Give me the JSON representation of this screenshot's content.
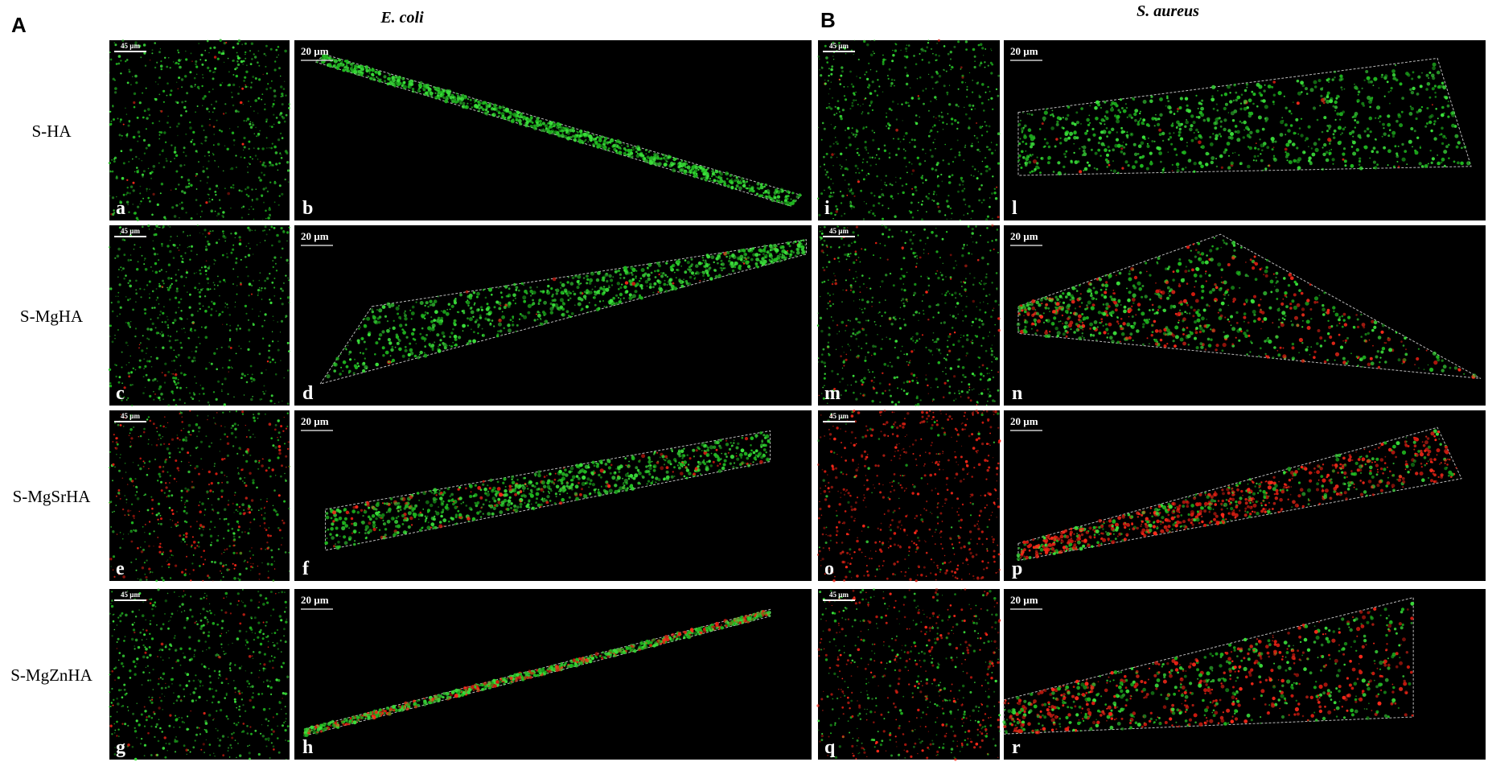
{
  "row_labels": [
    "S-HA",
    "S-MgHA",
    "S-MgSrHA",
    "S-MgZnHA"
  ],
  "panels": [
    {
      "label": "A",
      "title": "E. coli",
      "rows": [
        {
          "image": {
            "letter": "a",
            "scale_bar": "45 µm"
          },
          "view3d": {
            "letter": "b",
            "scale_bar": "20 µm"
          }
        },
        {
          "image": {
            "letter": "c",
            "scale_bar": "45 µm"
          },
          "view3d": {
            "letter": "d",
            "scale_bar": "20 µm"
          }
        },
        {
          "image": {
            "letter": "e",
            "scale_bar": "45 µm"
          },
          "view3d": {
            "letter": "f",
            "scale_bar": "20 µm"
          }
        },
        {
          "image": {
            "letter": "g",
            "scale_bar": "45 µm"
          },
          "view3d": {
            "letter": "h",
            "scale_bar": "20 µm"
          }
        }
      ]
    },
    {
      "label": "B",
      "title": "S. aureus",
      "rows": [
        {
          "image": {
            "letter": "i",
            "scale_bar": "45 µm"
          },
          "view3d": {
            "letter": "l",
            "scale_bar": "20 µm"
          }
        },
        {
          "image": {
            "letter": "m",
            "scale_bar": "45 µm"
          },
          "view3d": {
            "letter": "n",
            "scale_bar": "20 µm"
          }
        },
        {
          "image": {
            "letter": "o",
            "scale_bar": "45 µm"
          },
          "view3d": {
            "letter": "p",
            "scale_bar": "20 µm"
          }
        },
        {
          "image": {
            "letter": "q",
            "scale_bar": "45 µm"
          },
          "view3d": {
            "letter": "r",
            "scale_bar": "20 µm"
          }
        }
      ]
    }
  ]
}
